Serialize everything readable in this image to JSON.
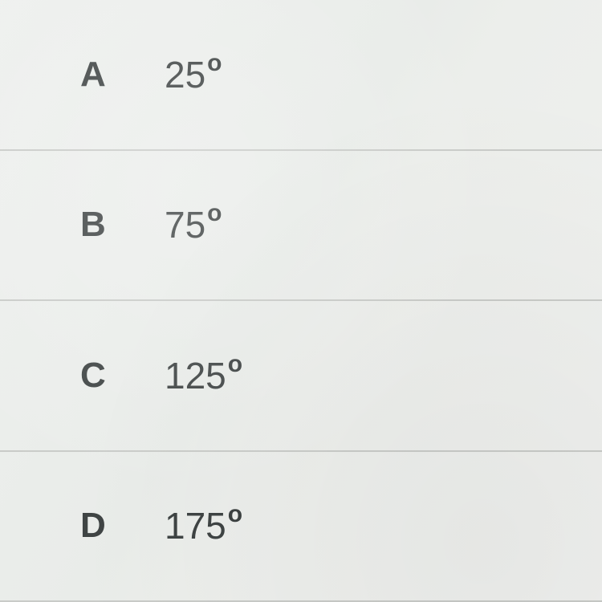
{
  "options": [
    {
      "letter": "A",
      "value": "25",
      "degree": "o"
    },
    {
      "letter": "B",
      "value": "75",
      "degree": "o"
    },
    {
      "letter": "C",
      "value": "125",
      "degree": "o"
    },
    {
      "letter": "D",
      "value": "175",
      "degree": "o"
    }
  ],
  "colors": {
    "background": "#ecefec",
    "border": "#c9cbc8",
    "text": "#3f4444"
  }
}
